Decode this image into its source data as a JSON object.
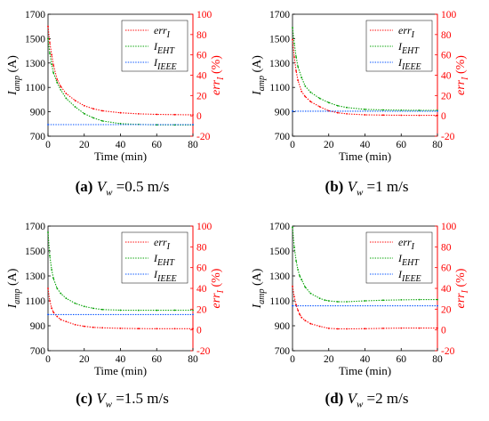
{
  "figure": {
    "colors": {
      "err": "#ff0000",
      "eht": "#00a000",
      "ieee": "#0050ff",
      "axis": "#000000"
    },
    "legend_labels": {
      "err": {
        "main": "err",
        "sub": "I"
      },
      "eht": {
        "main": "I",
        "sub": "EHT"
      },
      "ieee": {
        "main": "I",
        "sub": "IEEE"
      }
    },
    "y_left_label": {
      "main": "I",
      "sub": "amp",
      "unit": " (A)"
    },
    "y_right_label": {
      "main": "err",
      "sub": "I",
      "unit": " (%)"
    },
    "x_label": "Time (min)"
  },
  "captions": [
    {
      "tag": "(a)",
      "var": "V",
      "sub": "w",
      "text": " =0.5 m/s"
    },
    {
      "tag": "(b)",
      "var": "V",
      "sub": "w",
      "text": " =1 m/s"
    },
    {
      "tag": "(c)",
      "var": "V",
      "sub": "w",
      "text": " =1.5 m/s"
    },
    {
      "tag": "(d)",
      "var": "V",
      "sub": "w",
      "text": " =2 m/s"
    }
  ],
  "chart_data": [
    {
      "type": "line",
      "xlim": [
        0,
        80
      ],
      "ylim": [
        700,
        1700
      ],
      "y2lim": [
        -20,
        100
      ],
      "xticks": [
        0,
        20,
        40,
        60,
        80
      ],
      "yticks": [
        700,
        900,
        1100,
        1300,
        1500,
        1700
      ],
      "y2ticks": [
        -20,
        0,
        20,
        40,
        60,
        80,
        100
      ],
      "xlabel": "Time (min)",
      "series": [
        {
          "name": "errI",
          "axis": "right",
          "x": [
            0,
            1,
            2,
            3,
            5,
            7,
            10,
            15,
            20,
            25,
            30,
            40,
            50,
            60,
            70,
            80
          ],
          "y": [
            88,
            72,
            60,
            50,
            36,
            29,
            22,
            15,
            10,
            7,
            5,
            3,
            2,
            1.5,
            1.2,
            1
          ]
        },
        {
          "name": "IEHT",
          "axis": "left",
          "x": [
            0,
            1,
            2,
            3,
            5,
            7,
            10,
            15,
            20,
            25,
            30,
            40,
            50,
            60,
            70,
            80
          ],
          "y": [
            1500,
            1380,
            1290,
            1220,
            1140,
            1080,
            1010,
            940,
            885,
            850,
            825,
            803,
            796,
            793,
            792,
            792
          ]
        },
        {
          "name": "IIEEE",
          "axis": "left",
          "x": [
            0,
            80
          ],
          "y": [
            795,
            795
          ]
        }
      ]
    },
    {
      "type": "line",
      "xlim": [
        0,
        80
      ],
      "ylim": [
        700,
        1700
      ],
      "y2lim": [
        -20,
        100
      ],
      "xticks": [
        0,
        20,
        40,
        60,
        80
      ],
      "yticks": [
        700,
        900,
        1100,
        1300,
        1500,
        1700
      ],
      "y2ticks": [
        -20,
        0,
        20,
        40,
        60,
        80,
        100
      ],
      "xlabel": "Time (min)",
      "series": [
        {
          "name": "errI",
          "axis": "right",
          "x": [
            0,
            1,
            2,
            3,
            5,
            7,
            10,
            15,
            20,
            25,
            30,
            40,
            50,
            60,
            70,
            80
          ],
          "y": [
            75,
            58,
            44,
            35,
            24,
            19,
            14,
            9,
            5,
            3,
            2,
            1,
            0.8,
            0.6,
            0.5,
            0.5
          ]
        },
        {
          "name": "IEHT",
          "axis": "left",
          "x": [
            0,
            1,
            2,
            3,
            5,
            7,
            10,
            15,
            20,
            25,
            30,
            40,
            50,
            60,
            70,
            80
          ],
          "y": [
            1590,
            1460,
            1350,
            1270,
            1180,
            1110,
            1060,
            1010,
            975,
            950,
            935,
            920,
            915,
            913,
            912,
            912
          ]
        },
        {
          "name": "IIEEE",
          "axis": "left",
          "x": [
            0,
            80
          ],
          "y": [
            905,
            905
          ]
        }
      ]
    },
    {
      "type": "line",
      "xlim": [
        0,
        80
      ],
      "ylim": [
        700,
        1700
      ],
      "y2lim": [
        -20,
        100
      ],
      "xticks": [
        0,
        20,
        40,
        60,
        80
      ],
      "yticks": [
        700,
        900,
        1100,
        1300,
        1500,
        1700
      ],
      "y2ticks": [
        -20,
        0,
        20,
        40,
        60,
        80,
        100
      ],
      "xlabel": "Time (min)",
      "series": [
        {
          "name": "errI",
          "axis": "right",
          "x": [
            0,
            1,
            2,
            3,
            5,
            7,
            10,
            15,
            20,
            25,
            30,
            40,
            50,
            60,
            70,
            80
          ],
          "y": [
            40,
            28,
            21,
            17,
            13,
            10,
            8,
            5,
            3.5,
            2.5,
            2,
            1.5,
            1.3,
            1.2,
            1.2,
            1.2
          ]
        },
        {
          "name": "IEHT",
          "axis": "left",
          "x": [
            0,
            1,
            2,
            3,
            5,
            7,
            10,
            15,
            20,
            25,
            30,
            40,
            50,
            60,
            70,
            80
          ],
          "y": [
            1650,
            1460,
            1350,
            1280,
            1200,
            1160,
            1120,
            1080,
            1055,
            1040,
            1030,
            1025,
            1024,
            1024,
            1025,
            1025
          ]
        },
        {
          "name": "IIEEE",
          "axis": "left",
          "x": [
            0,
            80
          ],
          "y": [
            990,
            990
          ]
        }
      ]
    },
    {
      "type": "line",
      "xlim": [
        0,
        80
      ],
      "ylim": [
        700,
        1700
      ],
      "y2lim": [
        -20,
        100
      ],
      "xticks": [
        0,
        20,
        40,
        60,
        80
      ],
      "yticks": [
        700,
        900,
        1100,
        1300,
        1500,
        1700
      ],
      "y2ticks": [
        -20,
        0,
        20,
        40,
        60,
        80,
        100
      ],
      "xlabel": "Time (min)",
      "series": [
        {
          "name": "errI",
          "axis": "right",
          "x": [
            0,
            1,
            2,
            3,
            4,
            5,
            7,
            10,
            15,
            20,
            25,
            30,
            40,
            50,
            60,
            70,
            80
          ],
          "y": [
            42,
            32,
            24,
            19,
            15,
            12,
            9,
            6,
            3.5,
            1.5,
            1,
            1,
            1.2,
            1.5,
            1.8,
            1.8,
            1.8
          ]
        },
        {
          "name": "IEHT",
          "axis": "left",
          "x": [
            0,
            1,
            2,
            3,
            4,
            5,
            7,
            10,
            15,
            18,
            20,
            25,
            30,
            40,
            50,
            60,
            70,
            80
          ],
          "y": [
            1690,
            1530,
            1420,
            1350,
            1300,
            1270,
            1210,
            1160,
            1120,
            1105,
            1100,
            1093,
            1093,
            1100,
            1105,
            1108,
            1110,
            1110
          ]
        },
        {
          "name": "IIEEE",
          "axis": "left",
          "x": [
            0,
            80
          ],
          "y": [
            1060,
            1060
          ]
        }
      ]
    }
  ]
}
